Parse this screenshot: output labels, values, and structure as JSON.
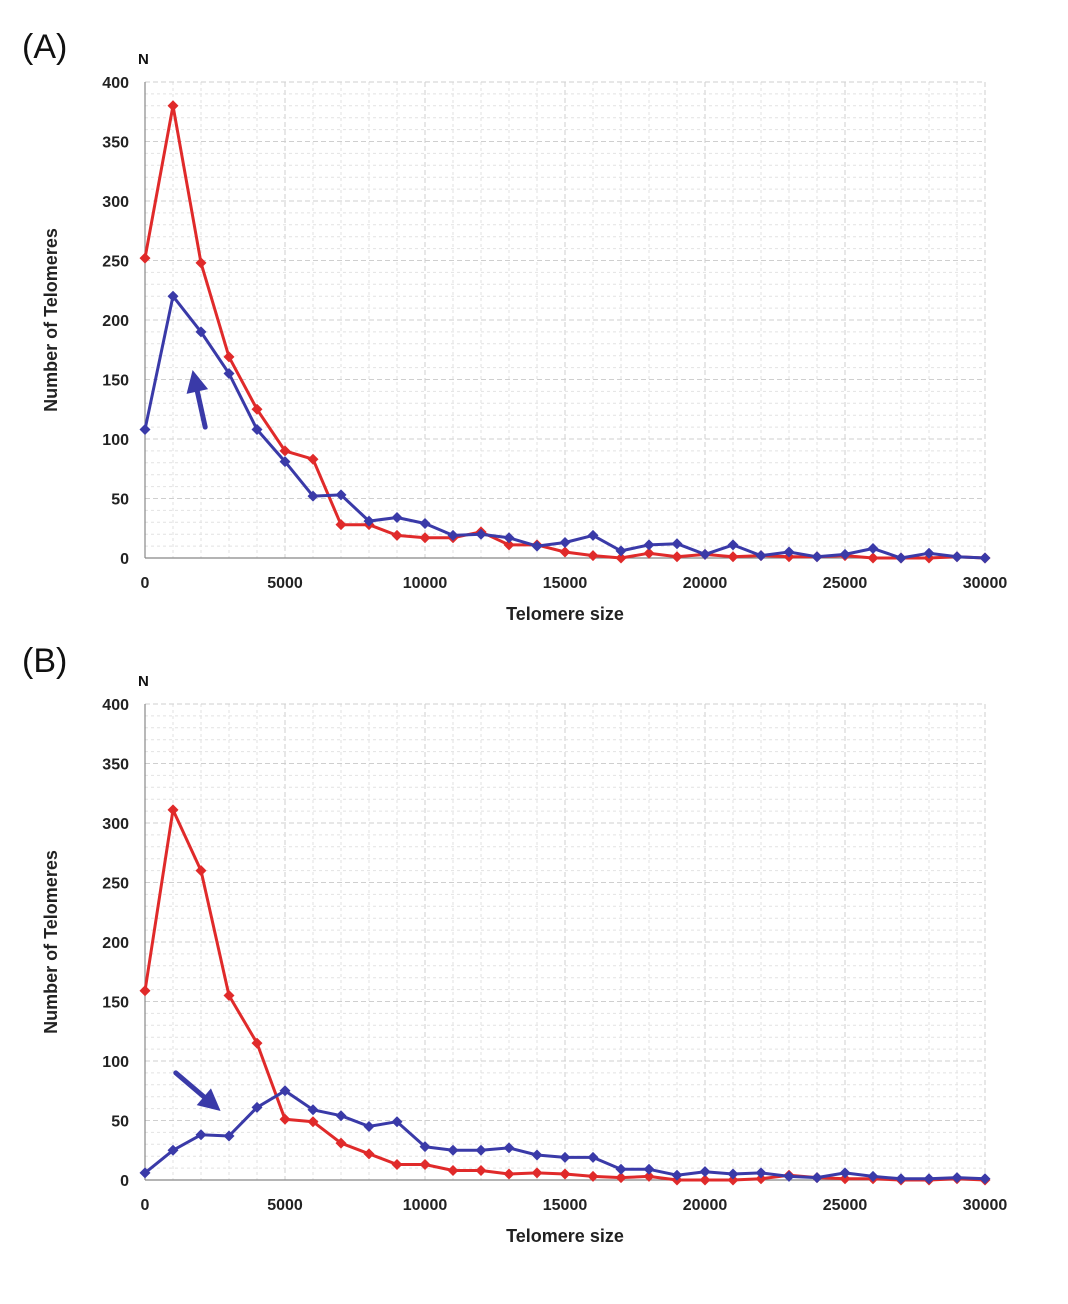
{
  "chart_data": [
    {
      "type": "line",
      "panel_label": "(A)",
      "y_unit_label": "N",
      "xlabel": "Telomere size",
      "ylabel": "Number of Telomeres",
      "xlim": [
        0,
        30000
      ],
      "ylim": [
        0,
        400
      ],
      "xticks": [
        "0",
        "5000",
        "10000",
        "15000",
        "20000",
        "25000",
        "30000"
      ],
      "yticks": [
        "0",
        "50",
        "100",
        "150",
        "200",
        "250",
        "300",
        "350",
        "400"
      ],
      "grid": true,
      "annotation": {
        "type": "arrow",
        "color": "#3a3aa8",
        "from": [
          2150,
          110
        ],
        "to": [
          1700,
          158
        ]
      },
      "x": [
        0,
        1000,
        2000,
        3000,
        4000,
        5000,
        6000,
        7000,
        8000,
        9000,
        10000,
        11000,
        12000,
        13000,
        14000,
        15000,
        16000,
        17000,
        18000,
        19000,
        20000,
        21000,
        22000,
        23000,
        24000,
        25000,
        26000,
        27000,
        28000,
        29000,
        30000
      ],
      "series": [
        {
          "color": "#e02a2a",
          "values": [
            252,
            380,
            248,
            169,
            125,
            90,
            83,
            28,
            28,
            19,
            17,
            17,
            22,
            11,
            11,
            5,
            2,
            0,
            4,
            1,
            3,
            1,
            2,
            1,
            1,
            2,
            0,
            0,
            0,
            1,
            0
          ]
        },
        {
          "color": "#3a3aa8",
          "values": [
            108,
            220,
            190,
            155,
            108,
            81,
            52,
            53,
            31,
            34,
            29,
            19,
            20,
            17,
            10,
            13,
            19,
            6,
            11,
            12,
            3,
            11,
            2,
            5,
            1,
            3,
            8,
            0,
            4,
            1,
            0
          ]
        }
      ]
    },
    {
      "type": "line",
      "panel_label": "(B)",
      "y_unit_label": "N",
      "xlabel": "Telomere size",
      "ylabel": "Number of Telomeres",
      "xlim": [
        0,
        30000
      ],
      "ylim": [
        0,
        400
      ],
      "xticks": [
        "0",
        "5000",
        "10000",
        "15000",
        "20000",
        "25000",
        "30000"
      ],
      "yticks": [
        "0",
        "50",
        "100",
        "150",
        "200",
        "250",
        "300",
        "350",
        "400"
      ],
      "grid": true,
      "annotation": {
        "type": "arrow",
        "color": "#3a3aa8",
        "from": [
          1100,
          90
        ],
        "to": [
          2700,
          58
        ]
      },
      "x": [
        0,
        1000,
        2000,
        3000,
        4000,
        5000,
        6000,
        7000,
        8000,
        9000,
        10000,
        11000,
        12000,
        13000,
        14000,
        15000,
        16000,
        17000,
        18000,
        19000,
        20000,
        21000,
        22000,
        23000,
        24000,
        25000,
        26000,
        27000,
        28000,
        29000,
        30000
      ],
      "series": [
        {
          "color": "#e02a2a",
          "values": [
            159,
            311,
            260,
            155,
            115,
            51,
            49,
            31,
            22,
            13,
            13,
            8,
            8,
            5,
            6,
            5,
            3,
            2,
            3,
            0,
            0,
            0,
            1,
            4,
            2,
            1,
            1,
            0,
            0,
            1,
            0
          ]
        },
        {
          "color": "#3a3aa8",
          "values": [
            6,
            25,
            38,
            37,
            61,
            75,
            59,
            54,
            45,
            49,
            28,
            25,
            25,
            27,
            21,
            19,
            19,
            9,
            9,
            4,
            7,
            5,
            6,
            3,
            2,
            6,
            3,
            1,
            1,
            2,
            1
          ]
        }
      ]
    }
  ]
}
